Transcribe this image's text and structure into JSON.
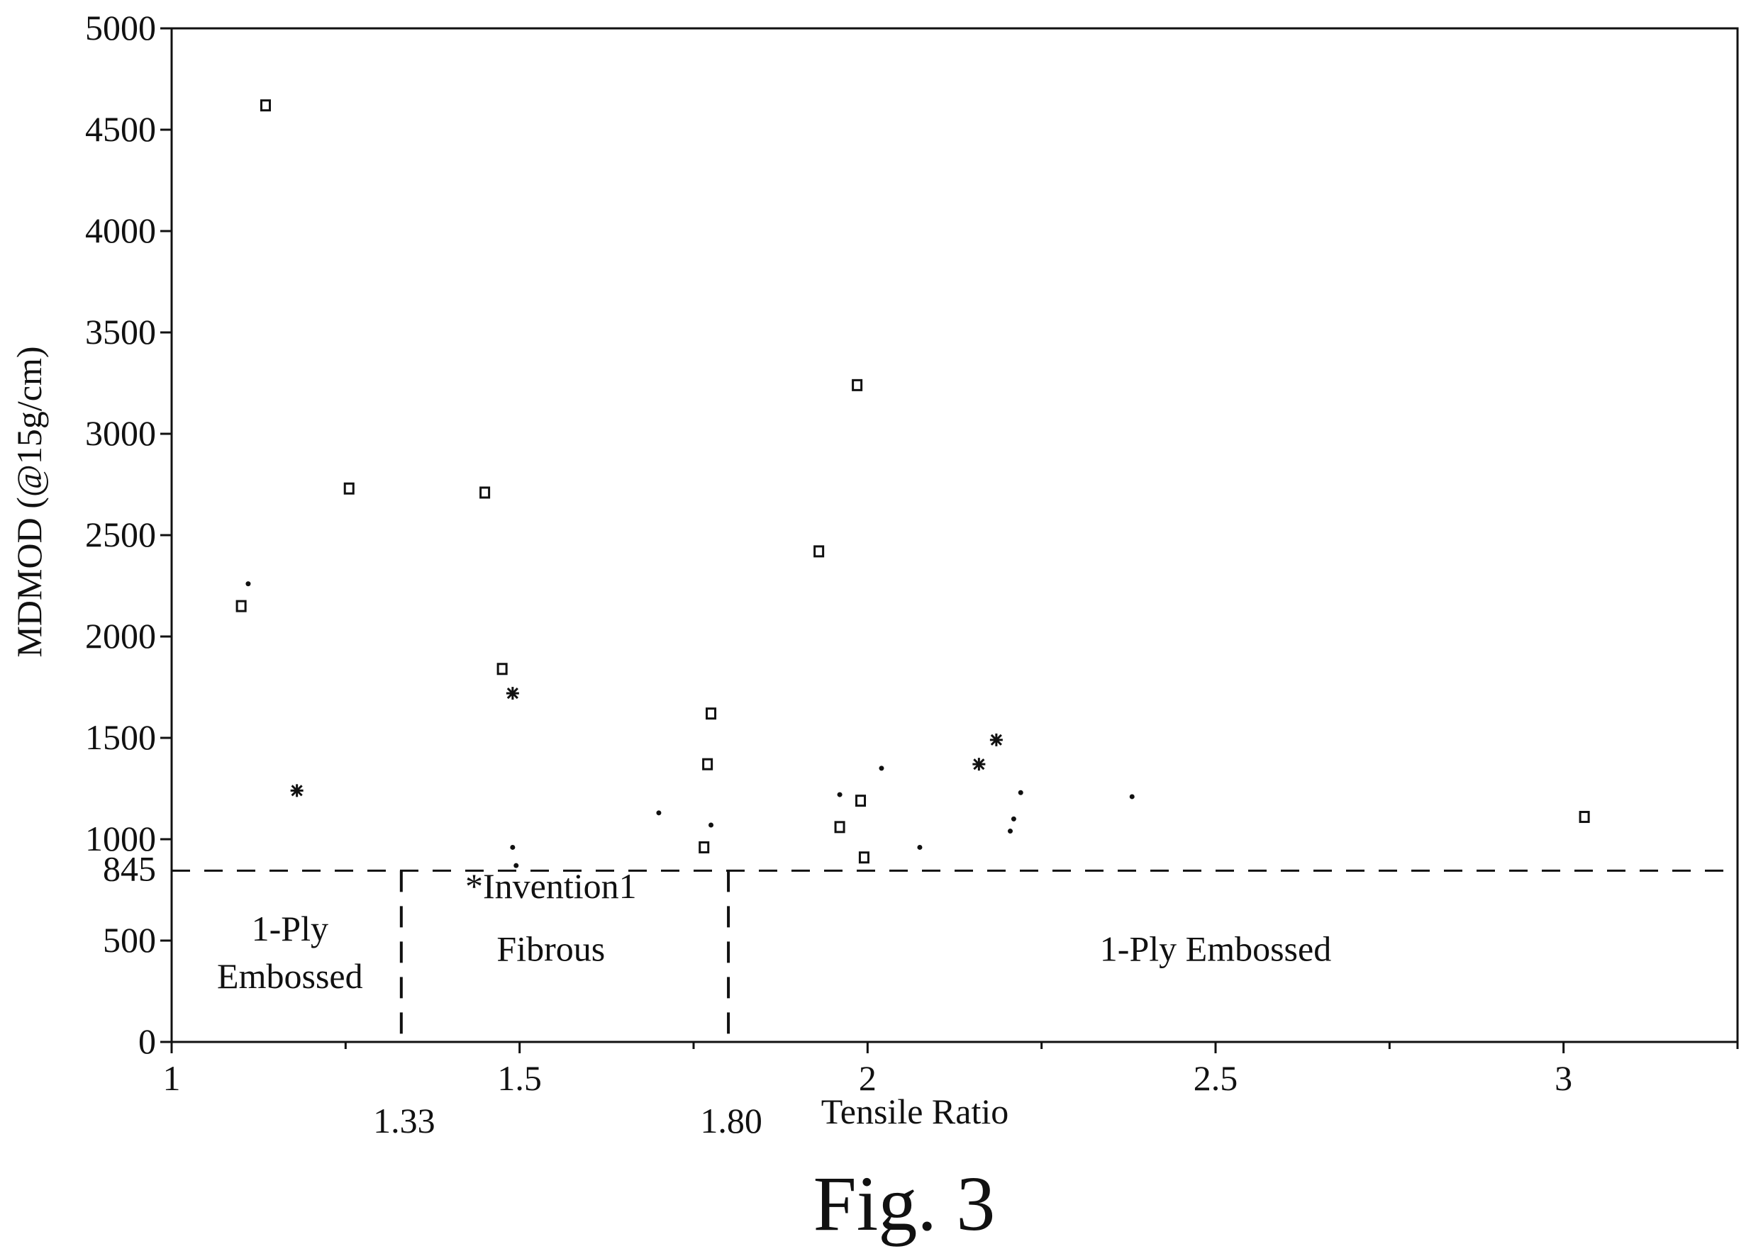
{
  "chart_data": {
    "type": "scatter",
    "title": "",
    "xlabel": "Tensile Ratio",
    "ylabel": "MDMOD (@15g/cm)",
    "xlim": [
      1,
      3.25
    ],
    "ylim": [
      0,
      5000
    ],
    "x_ticks": [
      "1",
      "1.5",
      "2",
      "2.5",
      "3"
    ],
    "x_ticks_minor": [
      1.25,
      1.75,
      2.25,
      2.75,
      3.25
    ],
    "y_ticks": [
      "0",
      "500",
      "1000",
      "1500",
      "2000",
      "2500",
      "3000",
      "3500",
      "4000",
      "4500",
      "5000"
    ],
    "grid": false,
    "threshold": {
      "value": 845,
      "label": "845"
    },
    "boundaries": [
      {
        "value": 1.33,
        "label": "1.33"
      },
      {
        "value": 1.8,
        "label": "1.80"
      }
    ],
    "regions": [
      {
        "lines": [
          "1-Ply",
          "Embossed"
        ],
        "x": 1.17,
        "y": [
          500,
          265
        ]
      },
      {
        "lines": [
          "*Invention1",
          "Fibrous"
        ],
        "x": 1.545,
        "y": [
          710,
          400
        ]
      },
      {
        "lines": [
          "1-Ply Embossed"
        ],
        "x": 2.5,
        "y": [
          400
        ]
      }
    ],
    "series": [
      {
        "marker": "square",
        "points": [
          [
            1.135,
            4620
          ],
          [
            1.1,
            2150
          ],
          [
            1.255,
            2730
          ],
          [
            1.45,
            2710
          ],
          [
            1.475,
            1840
          ],
          [
            1.775,
            1620
          ],
          [
            1.77,
            1370
          ],
          [
            1.765,
            960
          ],
          [
            1.93,
            2420
          ],
          [
            1.985,
            3240
          ],
          [
            1.99,
            1190
          ],
          [
            1.96,
            1060
          ],
          [
            1.995,
            910
          ],
          [
            3.03,
            1110
          ]
        ]
      },
      {
        "marker": "dot",
        "points": [
          [
            1.11,
            2260
          ],
          [
            1.49,
            960
          ],
          [
            1.495,
            870
          ],
          [
            1.7,
            1130
          ],
          [
            1.775,
            1070
          ],
          [
            1.96,
            1220
          ],
          [
            2.02,
            1350
          ],
          [
            2.075,
            960
          ],
          [
            2.21,
            1100
          ],
          [
            2.205,
            1040
          ],
          [
            2.22,
            1230
          ],
          [
            2.38,
            1210
          ]
        ]
      },
      {
        "marker": "star",
        "points": [
          [
            1.18,
            1240
          ],
          [
            1.49,
            1720
          ],
          [
            2.16,
            1370
          ],
          [
            2.185,
            1490
          ]
        ]
      }
    ]
  },
  "caption": "Fig. 3"
}
